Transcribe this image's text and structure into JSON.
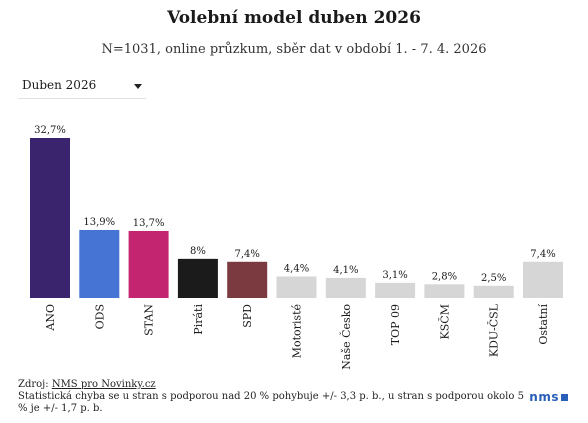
{
  "header": {
    "title": "Volební model duben 2026",
    "subtitle": "N=1031, online průzkum, sběr dat v období 1. - 7. 4. 2026"
  },
  "filter": {
    "selected": "Duben 2026"
  },
  "chart_data": {
    "type": "bar",
    "categories": [
      "ANO",
      "ODS",
      "STAN",
      "Piráti",
      "SPD",
      "Motoristé",
      "Naše Česko",
      "TOP 09",
      "KSČM",
      "KDU-ČSL",
      "Ostatní"
    ],
    "values": [
      32.7,
      13.9,
      13.7,
      8,
      7.4,
      4.4,
      4.1,
      3.1,
      2.8,
      2.5,
      7.4
    ],
    "value_labels": [
      "32,7%",
      "13,9%",
      "13,7%",
      "8%",
      "7,4%",
      "4,4%",
      "4,1%",
      "3,1%",
      "2,8%",
      "2,5%",
      "7,4%"
    ],
    "colors": [
      "#3b246e",
      "#4574d4",
      "#c42570",
      "#1b1b1b",
      "#7a3a3f",
      "#d6d6d6",
      "#d6d6d6",
      "#d6d6d6",
      "#d6d6d6",
      "#d6d6d6",
      "#d6d6d6"
    ],
    "ylim": [
      0,
      32.7
    ],
    "grid": false,
    "legend": "none"
  },
  "footer": {
    "source_prefix": "Zdroj: ",
    "source_link": "NMS pro Novinky.cz",
    "note": "Statistická chyba se u stran s podporou nad 20 % pohybuje +/- 3,3 p. b., u stran s podporou okolo 5 % je +/- 1,7 p. b."
  },
  "logo": {
    "text": "nms"
  }
}
